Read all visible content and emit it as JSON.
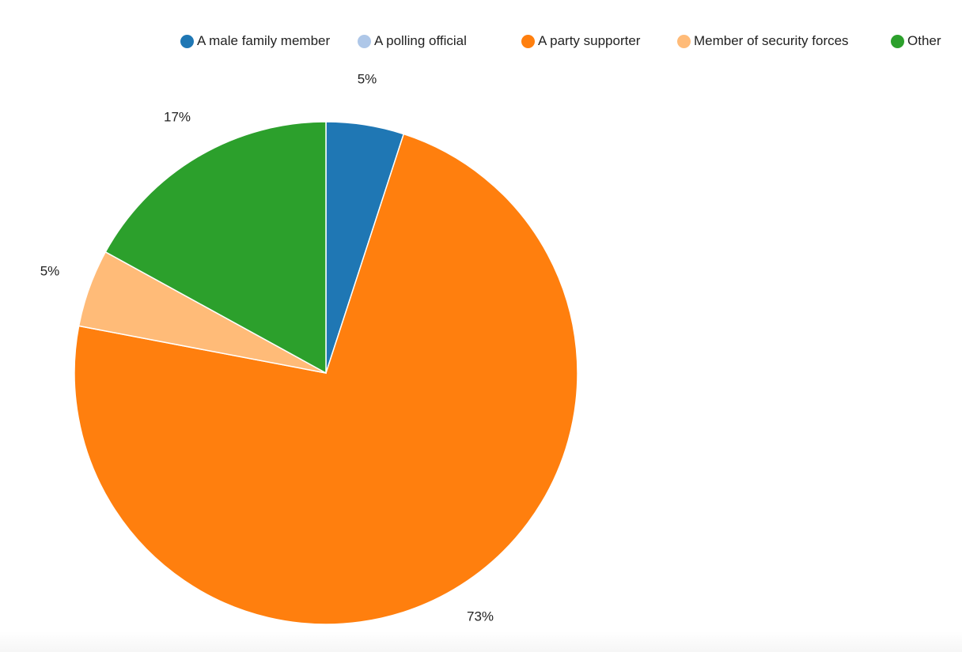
{
  "chart_data": {
    "type": "pie",
    "title": "",
    "categories": [
      "A male family member",
      "A polling official",
      "A party supporter",
      "Member of security forces",
      "Other"
    ],
    "values": [
      5,
      0,
      73,
      5,
      17
    ],
    "data_labels": [
      "5%",
      "",
      "73%",
      "5%",
      "17%"
    ],
    "colors": [
      "#1f77b4",
      "#aec7e8",
      "#ff7f0e",
      "#ffbb78",
      "#2ca02c"
    ],
    "legend_position": "top",
    "start_angle": "12 o'clock, clockwise"
  }
}
